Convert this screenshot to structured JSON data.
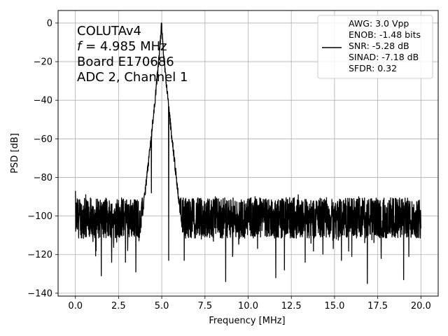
{
  "chart_data": {
    "type": "line",
    "title": "",
    "xlabel": "Frequency [MHz]",
    "ylabel": "PSD [dB]",
    "xlim": [
      -1.0,
      21.0
    ],
    "ylim": [
      -141.5,
      6.5
    ],
    "x_ticks": [
      0.0,
      2.5,
      5.0,
      7.5,
      10.0,
      12.5,
      15.0,
      17.5,
      20.0
    ],
    "x_tick_labels": [
      "0.0",
      "2.5",
      "5.0",
      "7.5",
      "10.0",
      "12.5",
      "15.0",
      "17.5",
      "20.0"
    ],
    "y_ticks": [
      0,
      -20,
      -40,
      -60,
      -80,
      -100,
      -120,
      -140
    ],
    "y_tick_labels": [
      "0",
      "−20",
      "−40",
      "−60",
      "−80",
      "−100",
      "−120",
      "−140"
    ],
    "grid": true,
    "legend_position": "top-right",
    "annotation": {
      "lines": [
        "COLUTAv4",
        "f = 4.985 MHz",
        "Board E170686",
        "ADC 2, Channel 1"
      ],
      "position": "top-left"
    },
    "series": [
      {
        "name": "AWG: 3.0 Vpp\nENOB: -1.48 bits\nSNR: -5.28 dB\nSINAD: -7.18 dB\nSFDR: 0.32",
        "legend_lines": [
          "AWG: 3.0 Vpp",
          "ENOB: -1.48 bits",
          "SNR: -5.28 dB",
          "SINAD: -7.18 dB",
          "SFDR: 0.32"
        ],
        "color": "#000000",
        "x_range": [
          0.0,
          20.0
        ],
        "peak_frequency": 4.985,
        "peak_value": 0.0,
        "noise_floor_mean": -101,
        "noise_floor_spread": [
          -112,
          -91
        ],
        "spikes_down": [
          {
            "x": 0.6,
            "y": -120
          },
          {
            "x": 1.2,
            "y": -118
          },
          {
            "x": 1.5,
            "y": -131
          },
          {
            "x": 2.1,
            "y": -124
          },
          {
            "x": 2.9,
            "y": -124
          },
          {
            "x": 3.5,
            "y": -129
          },
          {
            "x": 5.4,
            "y": -123
          },
          {
            "x": 6.3,
            "y": -123
          },
          {
            "x": 8.7,
            "y": -134
          },
          {
            "x": 9.1,
            "y": -121
          },
          {
            "x": 11.6,
            "y": -132
          },
          {
            "x": 12.1,
            "y": -128
          },
          {
            "x": 13.3,
            "y": -124
          },
          {
            "x": 15.4,
            "y": -123
          },
          {
            "x": 16.9,
            "y": -135
          },
          {
            "x": 17.7,
            "y": -122
          },
          {
            "x": 19.0,
            "y": -133
          },
          {
            "x": 19.3,
            "y": -121
          }
        ],
        "spikes_up": [
          {
            "x": 0.0,
            "y": -87
          },
          {
            "x": 0.6,
            "y": -89
          },
          {
            "x": 4.4,
            "y": -88
          },
          {
            "x": 8.1,
            "y": -90
          },
          {
            "x": 10.4,
            "y": -90
          },
          {
            "x": 12.9,
            "y": -89
          },
          {
            "x": 16.4,
            "y": -90
          }
        ]
      }
    ]
  }
}
